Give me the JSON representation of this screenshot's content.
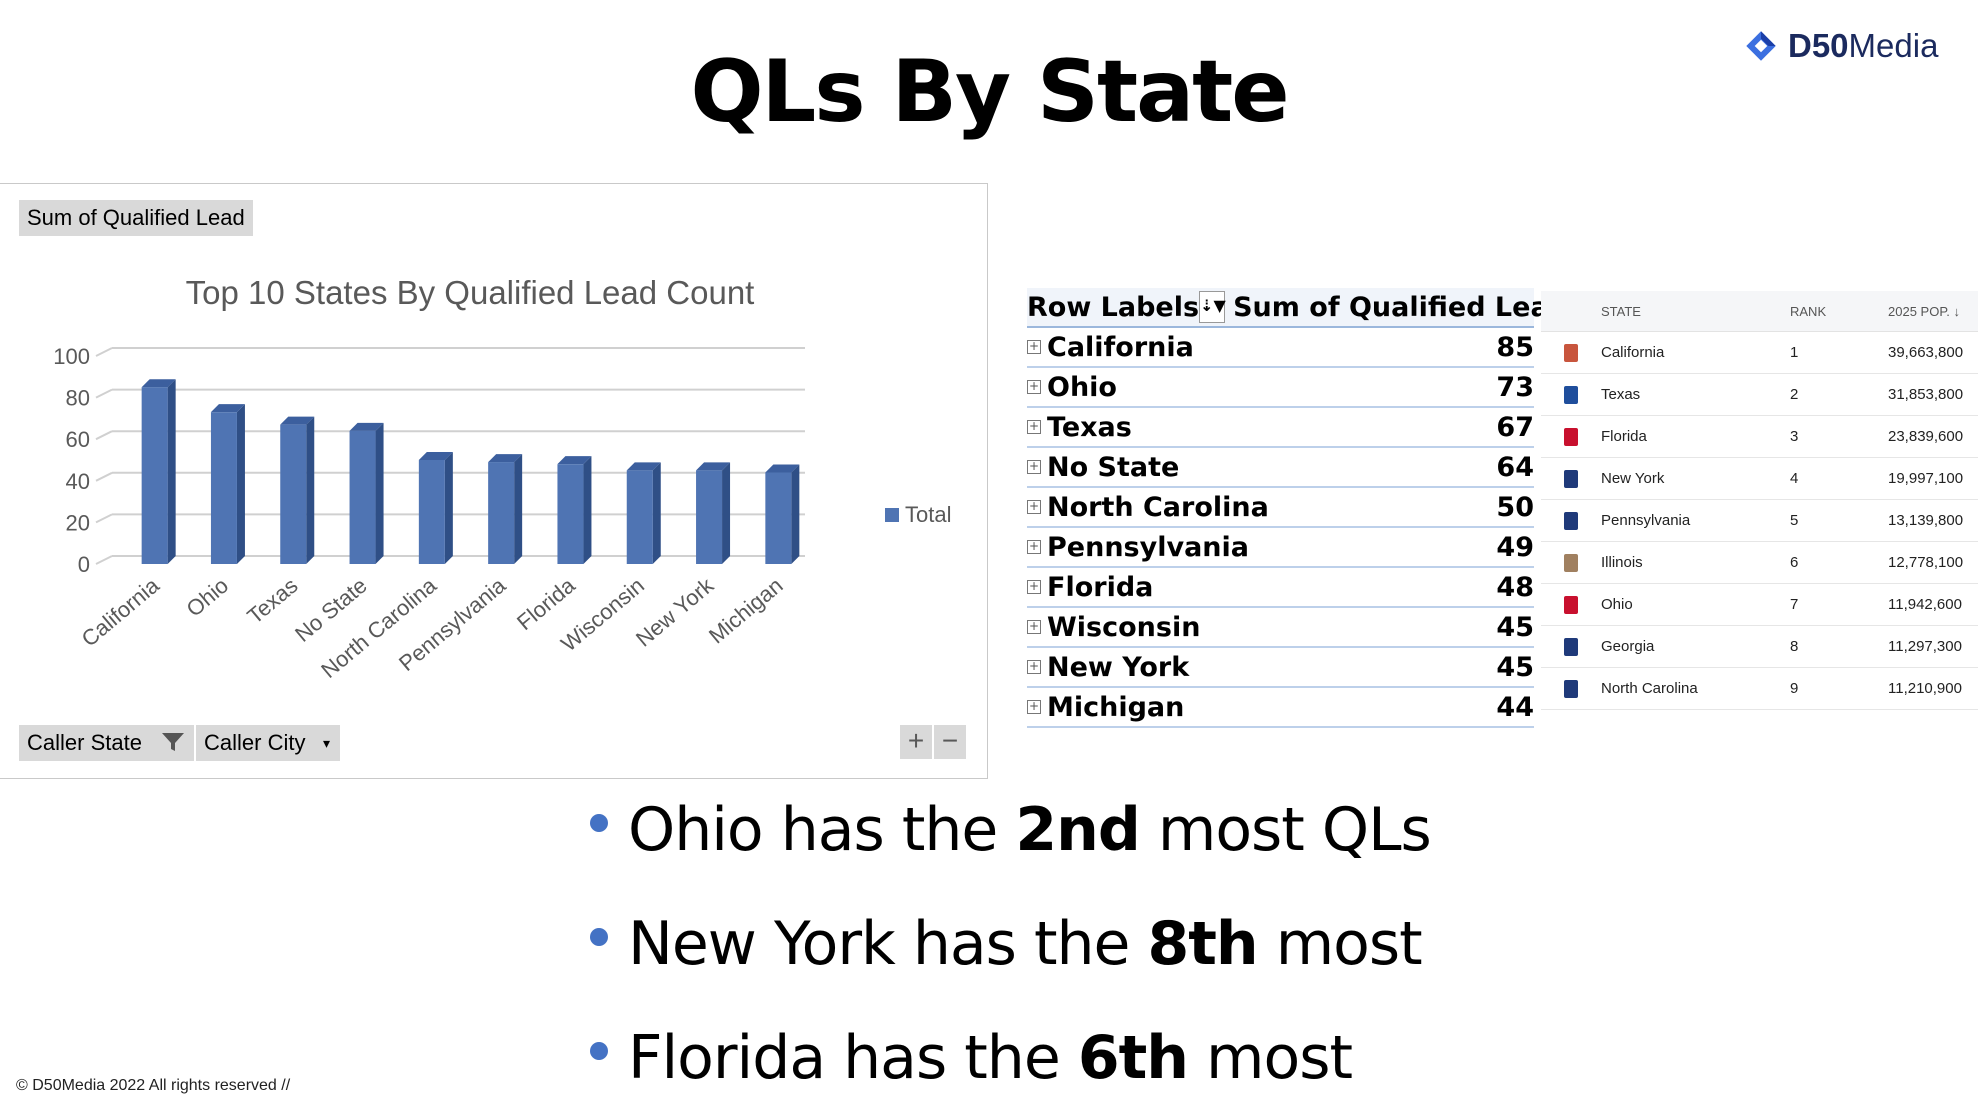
{
  "slide": {
    "title": "QLs By State",
    "footer": "© D50Media 2022 All rights reserved //",
    "logo": {
      "bold": "D50",
      "rest": "Media"
    }
  },
  "pivot_chart": {
    "field_value": "Sum of Qualified Lead",
    "field_caller_state": "Caller State",
    "field_caller_city": "Caller City",
    "zoom_in": "+",
    "zoom_out": "−"
  },
  "chart_data": {
    "type": "bar",
    "title": "Top 10 States By Qualified Lead Count",
    "categories": [
      "California",
      "Ohio",
      "Texas",
      "No State",
      "North Carolina",
      "Pennsylvania",
      "Florida",
      "Wisconsin",
      "New York",
      "Michigan"
    ],
    "series": [
      {
        "name": "Total",
        "values": [
          85,
          73,
          67,
          64,
          50,
          49,
          48,
          45,
          45,
          44
        ],
        "color": "#4f74b3"
      }
    ],
    "ylim": [
      0,
      100
    ],
    "yticks": [
      0,
      20,
      40,
      60,
      80,
      100
    ],
    "grid": true,
    "legend": "right"
  },
  "pivot_table": {
    "col_row_labels": "Row Labels",
    "col_sum": "Sum of Qualified Lead",
    "rows": [
      {
        "label": "California",
        "value": "85"
      },
      {
        "label": "Ohio",
        "value": "73"
      },
      {
        "label": "Texas",
        "value": "67"
      },
      {
        "label": " No State",
        "value": "64"
      },
      {
        "label": "North Carolina",
        "value": "50"
      },
      {
        "label": "Pennsylvania",
        "value": "49"
      },
      {
        "label": "Florida",
        "value": "48"
      },
      {
        "label": "Wisconsin",
        "value": "45"
      },
      {
        "label": "New York",
        "value": "45"
      },
      {
        "label": "Michigan",
        "value": "44"
      }
    ]
  },
  "population_table": {
    "col_state": "STATE",
    "col_rank": "RANK",
    "col_pop": "2025 POP. ↓",
    "rows": [
      {
        "state": "California",
        "rank": "1",
        "pop": "39,663,800",
        "flag": "#c8553d"
      },
      {
        "state": "Texas",
        "rank": "2",
        "pop": "31,853,800",
        "flag": "#1f4e9c"
      },
      {
        "state": "Florida",
        "rank": "3",
        "pop": "23,839,600",
        "flag": "#c8102e"
      },
      {
        "state": "New York",
        "rank": "4",
        "pop": "19,997,100",
        "flag": "#1f3a7a"
      },
      {
        "state": "Pennsylvania",
        "rank": "5",
        "pop": "13,139,800",
        "flag": "#1f3a7a"
      },
      {
        "state": "Illinois",
        "rank": "6",
        "pop": "12,778,100",
        "flag": "#a08060"
      },
      {
        "state": "Ohio",
        "rank": "7",
        "pop": "11,942,600",
        "flag": "#c8102e"
      },
      {
        "state": "Georgia",
        "rank": "8",
        "pop": "11,297,300",
        "flag": "#1f3a7a"
      },
      {
        "state": "North Carolina",
        "rank": "9",
        "pop": "11,210,900",
        "flag": "#1f3a7a"
      }
    ]
  },
  "bullets": [
    {
      "pre": "Ohio has the ",
      "bold": "2nd",
      "post": " most QLs"
    },
    {
      "pre": "New York has the ",
      "bold": "8th",
      "post": " most"
    },
    {
      "pre": "Florida has the ",
      "bold": "6th",
      "post": " most"
    }
  ]
}
